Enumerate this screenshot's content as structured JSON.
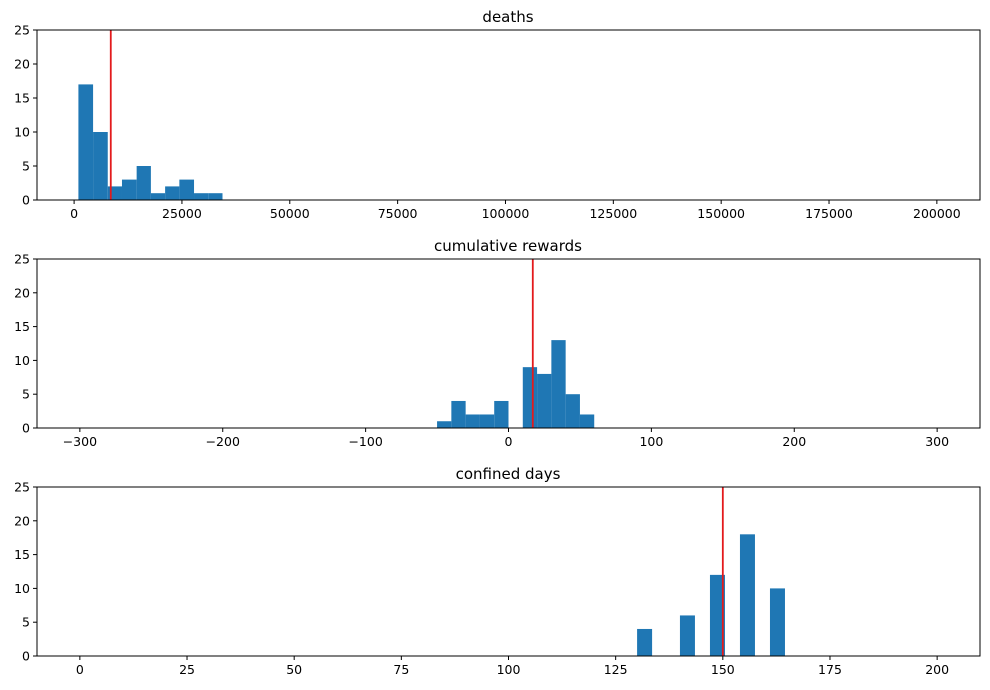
{
  "colors": {
    "bar": "#1f77b4",
    "vline": "#e31a1c",
    "axis": "#000000"
  },
  "chart_data": [
    {
      "type": "bar",
      "title": "deaths",
      "xlabel": "",
      "ylabel": "",
      "xlim": [
        -8600,
        210000
      ],
      "ylim": [
        0,
        25
      ],
      "xticks": [
        0,
        25000,
        50000,
        75000,
        100000,
        125000,
        150000,
        175000,
        200000
      ],
      "xtick_labels": [
        "0",
        "25000",
        "50000",
        "75000",
        "100000",
        "125000",
        "150000",
        "175000",
        "200000"
      ],
      "yticks": [
        0,
        5,
        10,
        15,
        20,
        25
      ],
      "ytick_labels": [
        "0",
        "5",
        "10",
        "15",
        "20",
        "25"
      ],
      "bins": [
        {
          "x0": 1000,
          "x1": 4400,
          "count": 17
        },
        {
          "x0": 4400,
          "x1": 7800,
          "count": 10
        },
        {
          "x0": 7800,
          "x1": 11100,
          "count": 2
        },
        {
          "x0": 11100,
          "x1": 14500,
          "count": 3
        },
        {
          "x0": 14500,
          "x1": 17800,
          "count": 5
        },
        {
          "x0": 17800,
          "x1": 21100,
          "count": 1
        },
        {
          "x0": 21100,
          "x1": 24400,
          "count": 2
        },
        {
          "x0": 24400,
          "x1": 27800,
          "count": 3
        },
        {
          "x0": 27800,
          "x1": 31100,
          "count": 1
        },
        {
          "x0": 31100,
          "x1": 34400,
          "count": 1
        }
      ],
      "vline": 8500
    },
    {
      "type": "bar",
      "title": "cumulative rewards",
      "xlabel": "",
      "ylabel": "",
      "xlim": [
        -330,
        330
      ],
      "ylim": [
        0,
        25
      ],
      "xticks": [
        -300,
        -200,
        -100,
        0,
        100,
        200,
        300
      ],
      "xtick_labels": [
        "−300",
        "−200",
        "−100",
        "0",
        "100",
        "200",
        "300"
      ],
      "yticks": [
        0,
        5,
        10,
        15,
        20,
        25
      ],
      "ytick_labels": [
        "0",
        "5",
        "10",
        "15",
        "20",
        "25"
      ],
      "bins": [
        {
          "x0": -50,
          "x1": -40,
          "count": 1
        },
        {
          "x0": -40,
          "x1": -30,
          "count": 4
        },
        {
          "x0": -30,
          "x1": -20,
          "count": 2
        },
        {
          "x0": -20,
          "x1": -10,
          "count": 2
        },
        {
          "x0": -10,
          "x1": 0,
          "count": 4
        },
        {
          "x0": 10,
          "x1": 20,
          "count": 9
        },
        {
          "x0": 20,
          "x1": 30,
          "count": 8
        },
        {
          "x0": 30,
          "x1": 40,
          "count": 13
        },
        {
          "x0": 40,
          "x1": 50,
          "count": 5
        },
        {
          "x0": 50,
          "x1": 60,
          "count": 2
        }
      ],
      "vline": 17
    },
    {
      "type": "bar",
      "title": "confined days",
      "xlabel": "",
      "ylabel": "",
      "xlim": [
        -10,
        210
      ],
      "ylim": [
        0,
        25
      ],
      "xticks": [
        0,
        25,
        50,
        75,
        100,
        125,
        150,
        175,
        200
      ],
      "xtick_labels": [
        "0",
        "25",
        "50",
        "75",
        "100",
        "125",
        "150",
        "175",
        "200"
      ],
      "yticks": [
        0,
        5,
        10,
        15,
        20,
        25
      ],
      "ytick_labels": [
        "0",
        "5",
        "10",
        "15",
        "20",
        "25"
      ],
      "bins": [
        {
          "x0": 130,
          "x1": 133.5,
          "count": 4
        },
        {
          "x0": 140,
          "x1": 143.5,
          "count": 6
        },
        {
          "x0": 147,
          "x1": 150.5,
          "count": 12
        },
        {
          "x0": 154,
          "x1": 157.5,
          "count": 18
        },
        {
          "x0": 161,
          "x1": 164.5,
          "count": 10
        }
      ],
      "vline": 150
    }
  ]
}
